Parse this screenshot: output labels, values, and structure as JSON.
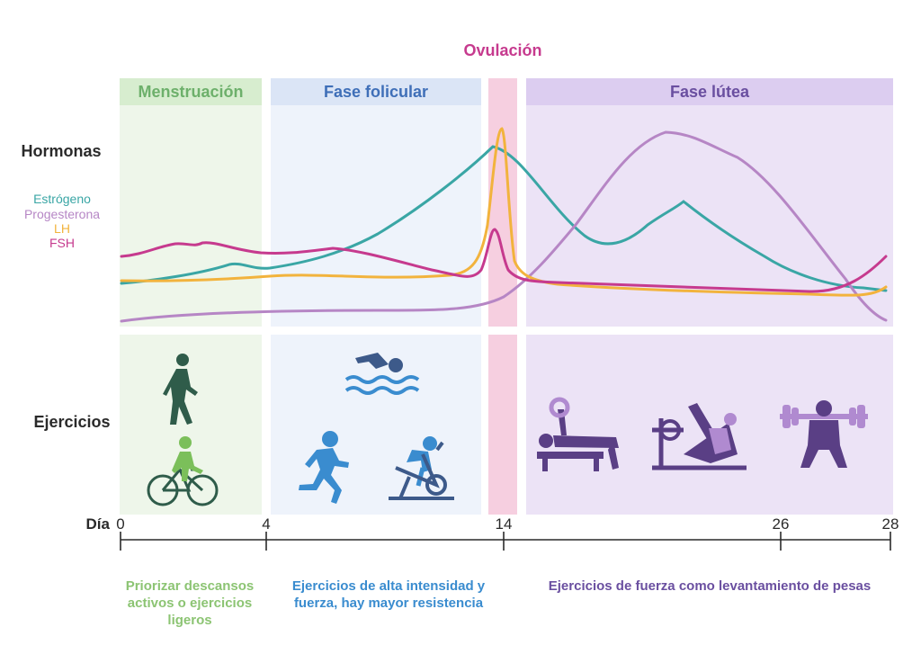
{
  "ovulation_label": "Ovulación",
  "phases": {
    "menstruation": "Menstruación",
    "follicular": "Fase folicular",
    "luteal": "Fase lútea"
  },
  "row_labels": {
    "hormones": "Hormonas",
    "exercises": "Ejercicios"
  },
  "legend": [
    {
      "name": "Estrógeno",
      "color": "#3aa6a5"
    },
    {
      "name": "Progesterona",
      "color": "#b686c5"
    },
    {
      "name": "LH",
      "color": "#f2b33d"
    },
    {
      "name": "FSH",
      "color": "#c63a8e"
    }
  ],
  "axis": {
    "label": "Día",
    "ticks": [
      "0",
      "4",
      "14",
      "26",
      "28"
    ]
  },
  "recommendations": {
    "menstruation": [
      "Priorizar descansos",
      "activos o ejercicios",
      "ligeros"
    ],
    "follicular": [
      "Ejercicios de alta intensidad y",
      "fuerza, hay mayor resistencia"
    ],
    "luteal": [
      "Ejercicios de fuerza como levantamiento de pesas"
    ]
  },
  "exercise_icons": {
    "menstruation": [
      "walking-icon",
      "cycling-icon"
    ],
    "follicular": [
      "swimming-icon",
      "running-icon",
      "spinning-icon"
    ],
    "luteal": [
      "bench-press-icon",
      "leg-press-icon",
      "squat-icon"
    ]
  },
  "colors": {
    "menstruation": "#6db06b",
    "follicular": "#3f6fb8",
    "ovulation": "#c63a8e",
    "luteal": "#6a4fa0",
    "rec_menstruation": "#8cc473",
    "rec_follicular": "#3a8ccf",
    "rec_luteal": "#6a4fa0"
  }
}
